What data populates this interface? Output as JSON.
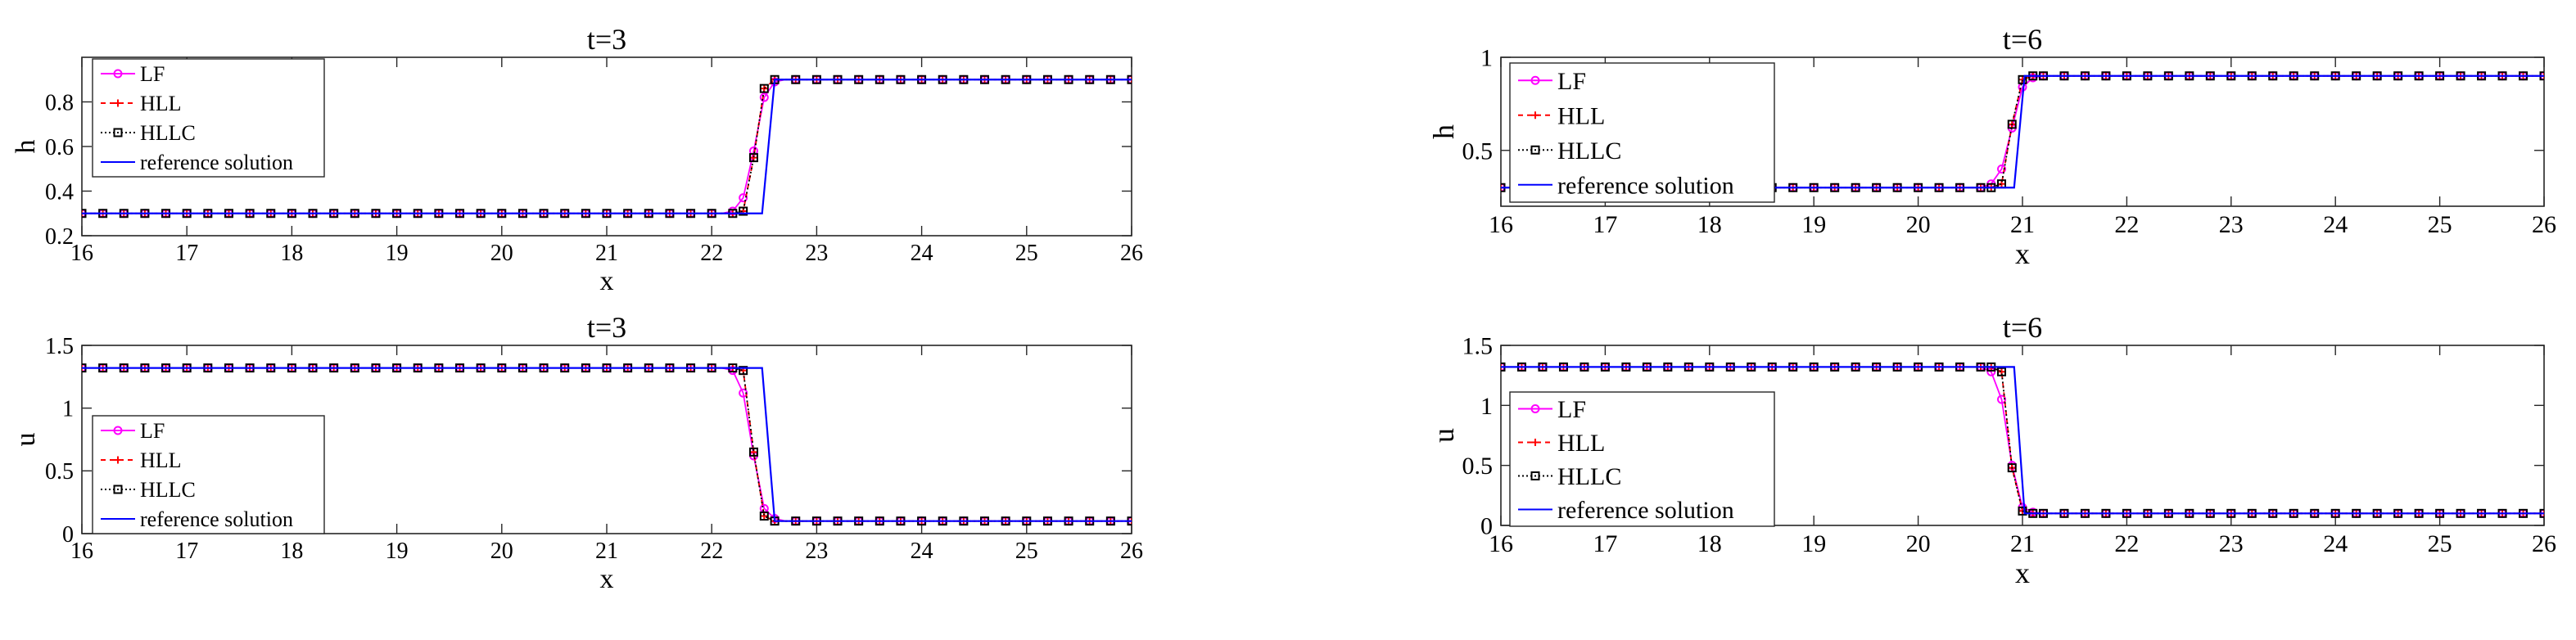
{
  "chart_data": [
    {
      "type": "line",
      "title": "t=3",
      "xlabel": "x",
      "ylabel": "h",
      "xlim": [
        16,
        26
      ],
      "ylim": [
        0.2,
        1.0
      ],
      "xticks": [
        16,
        17,
        18,
        19,
        20,
        21,
        22,
        23,
        24,
        25,
        26
      ],
      "yticks": [
        0.2,
        0.4,
        0.6,
        0.8
      ],
      "ytick_labels": [
        "0.2",
        "0.4",
        "0.6",
        "0.8"
      ],
      "legend_position": "top-left",
      "grid": false,
      "profile": {
        "left": 0.3,
        "right": 0.9,
        "jump_x": 22.55,
        "num_x0": 22.2,
        "num_x1": 22.6,
        "ref_x0": 22.48,
        "ref_x1": 22.6
      },
      "series": [
        {
          "name": "LF",
          "marker": "circle",
          "color": "#ff00ff",
          "x": [
            22.2,
            22.3,
            22.4,
            22.5,
            22.6
          ],
          "y": [
            0.31,
            0.37,
            0.58,
            0.82,
            0.89
          ]
        },
        {
          "name": "HLL",
          "marker": "plus",
          "color": "#ff0000",
          "x": [
            22.2,
            22.3,
            22.4,
            22.5,
            22.6
          ],
          "y": [
            0.3,
            0.31,
            0.55,
            0.86,
            0.9
          ]
        },
        {
          "name": "HLLC",
          "marker": "square",
          "color": "#000000",
          "x": [
            22.2,
            22.3,
            22.4,
            22.5,
            22.6
          ],
          "y": [
            0.3,
            0.31,
            0.55,
            0.86,
            0.9
          ]
        },
        {
          "name": "reference solution",
          "marker": "none",
          "color": "#0000ff",
          "x": [
            16,
            22.48,
            22.6,
            26
          ],
          "y": [
            0.3,
            0.3,
            0.9,
            0.9
          ]
        }
      ]
    },
    {
      "type": "line",
      "title": "t=3",
      "xlabel": "x",
      "ylabel": "u",
      "xlim": [
        16,
        26
      ],
      "ylim": [
        0,
        1.5
      ],
      "xticks": [
        16,
        17,
        18,
        19,
        20,
        21,
        22,
        23,
        24,
        25,
        26
      ],
      "yticks": [
        0,
        0.5,
        1,
        1.5
      ],
      "ytick_labels": [
        "0",
        "0.5",
        "1",
        "1.5"
      ],
      "legend_position": "bottom-left",
      "grid": false,
      "profile": {
        "left": 1.32,
        "right": 0.1,
        "jump_x": 22.5,
        "num_x0": 22.2,
        "num_x1": 22.6,
        "ref_x0": 22.48,
        "ref_x1": 22.6
      },
      "series": [
        {
          "name": "LF",
          "marker": "circle",
          "color": "#ff00ff",
          "x": [
            22.2,
            22.3,
            22.4,
            22.5,
            22.6
          ],
          "y": [
            1.3,
            1.12,
            0.62,
            0.2,
            0.12
          ]
        },
        {
          "name": "HLL",
          "marker": "plus",
          "color": "#ff0000",
          "x": [
            22.2,
            22.3,
            22.4,
            22.5,
            22.6
          ],
          "y": [
            1.32,
            1.3,
            0.65,
            0.14,
            0.1
          ]
        },
        {
          "name": "HLLC",
          "marker": "square",
          "color": "#000000",
          "x": [
            22.2,
            22.3,
            22.4,
            22.5,
            22.6
          ],
          "y": [
            1.32,
            1.3,
            0.65,
            0.14,
            0.1
          ]
        },
        {
          "name": "reference solution",
          "marker": "none",
          "color": "#0000ff",
          "x": [
            16,
            22.48,
            22.6,
            26
          ],
          "y": [
            1.32,
            1.32,
            0.1,
            0.1
          ]
        }
      ]
    },
    {
      "type": "line",
      "title": "t=6",
      "xlabel": "x",
      "ylabel": "h",
      "xlim": [
        16,
        26
      ],
      "ylim": [
        0.2,
        1.0
      ],
      "xticks": [
        16,
        17,
        18,
        19,
        20,
        21,
        22,
        23,
        24,
        25,
        26
      ],
      "yticks": [
        0.5,
        1.0
      ],
      "ytick_labels": [
        "0.5",
        "1"
      ],
      "legend_position": "top-left",
      "grid": false,
      "profile": {
        "left": 0.3,
        "right": 0.9,
        "jump_x": 20.95,
        "num_x0": 20.7,
        "num_x1": 21.1,
        "ref_x0": 20.92,
        "ref_x1": 21.02
      },
      "series": [
        {
          "name": "LF",
          "marker": "circle",
          "color": "#ff00ff",
          "x": [
            20.7,
            20.8,
            20.9,
            21.0,
            21.1
          ],
          "y": [
            0.32,
            0.4,
            0.62,
            0.84,
            0.89
          ]
        },
        {
          "name": "HLL",
          "marker": "plus",
          "color": "#ff0000",
          "x": [
            20.7,
            20.8,
            20.9,
            21.0,
            21.1
          ],
          "y": [
            0.3,
            0.32,
            0.64,
            0.88,
            0.9
          ]
        },
        {
          "name": "HLLC",
          "marker": "square",
          "color": "#000000",
          "x": [
            20.7,
            20.8,
            20.9,
            21.0,
            21.1
          ],
          "y": [
            0.3,
            0.32,
            0.64,
            0.88,
            0.9
          ]
        },
        {
          "name": "reference solution",
          "marker": "none",
          "color": "#0000ff",
          "x": [
            16,
            20.92,
            21.02,
            26
          ],
          "y": [
            0.3,
            0.3,
            0.9,
            0.9
          ]
        }
      ]
    },
    {
      "type": "line",
      "title": "t=6",
      "xlabel": "x",
      "ylabel": "u",
      "xlim": [
        16,
        26
      ],
      "ylim": [
        0,
        1.5
      ],
      "xticks": [
        16,
        17,
        18,
        19,
        20,
        21,
        22,
        23,
        24,
        25,
        26
      ],
      "yticks": [
        0,
        0.5,
        1,
        1.5
      ],
      "ytick_labels": [
        "0",
        "0.5",
        "1",
        "1.5"
      ],
      "legend_position": "bottom-left",
      "grid": false,
      "profile": {
        "left": 1.32,
        "right": 0.1,
        "jump_x": 20.9,
        "num_x0": 20.7,
        "num_x1": 21.1,
        "ref_x0": 20.92,
        "ref_x1": 21.02
      },
      "series": [
        {
          "name": "LF",
          "marker": "circle",
          "color": "#ff00ff",
          "x": [
            20.7,
            20.8,
            20.9,
            21.0,
            21.1
          ],
          "y": [
            1.28,
            1.05,
            0.5,
            0.15,
            0.11
          ]
        },
        {
          "name": "HLL",
          "marker": "plus",
          "color": "#ff0000",
          "x": [
            20.7,
            20.8,
            20.9,
            21.0,
            21.1
          ],
          "y": [
            1.32,
            1.28,
            0.48,
            0.12,
            0.1
          ]
        },
        {
          "name": "HLLC",
          "marker": "square",
          "color": "#000000",
          "x": [
            20.7,
            20.8,
            20.9,
            21.0,
            21.1
          ],
          "y": [
            1.32,
            1.28,
            0.48,
            0.12,
            0.1
          ]
        },
        {
          "name": "reference solution",
          "marker": "none",
          "color": "#0000ff",
          "x": [
            16,
            20.92,
            21.02,
            26
          ],
          "y": [
            1.32,
            1.32,
            0.1,
            0.1
          ]
        }
      ]
    }
  ]
}
